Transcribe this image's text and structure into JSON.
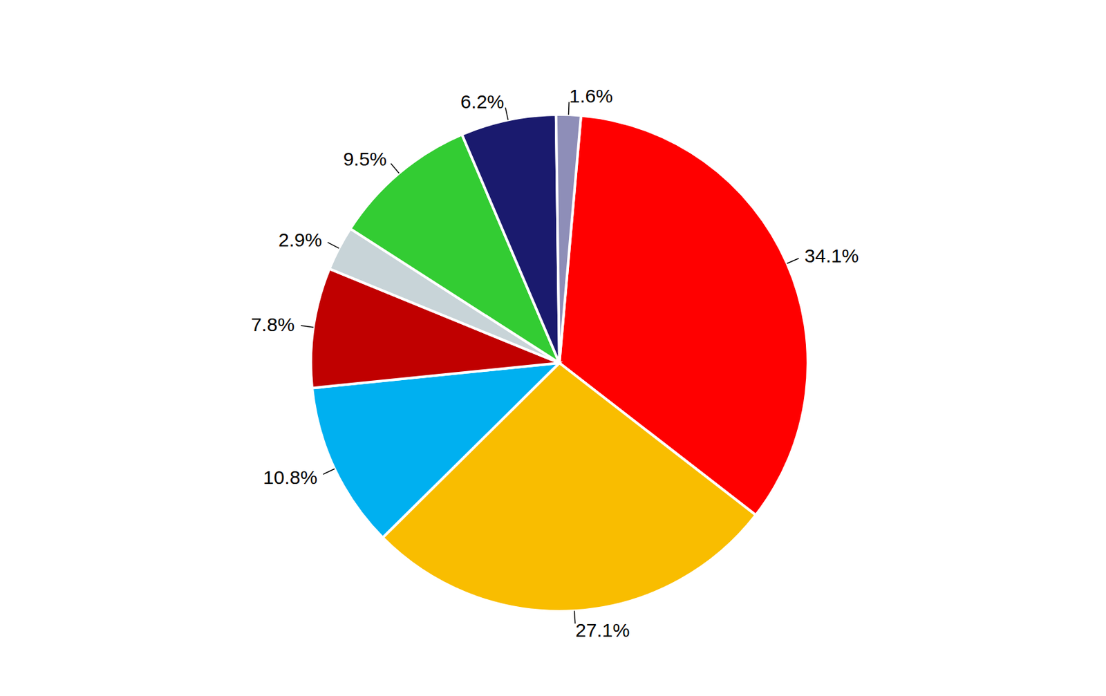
{
  "chart_data": {
    "type": "pie",
    "values": [
      34.1,
      27.1,
      10.8,
      7.8,
      2.9,
      9.5,
      6.2,
      1.6
    ],
    "value_labels": [
      "34.1%",
      "27.1%",
      "10.8%",
      "7.8%",
      "2.9%",
      "9.5%",
      "6.2%",
      "1.6%"
    ],
    "colors": [
      "#ff0000",
      "#f9bd00",
      "#00b0f0",
      "#c00000",
      "#c8d4d8",
      "#33cc33",
      "#1a1a6e",
      "#8e8eb8"
    ],
    "data_labels": true
  }
}
